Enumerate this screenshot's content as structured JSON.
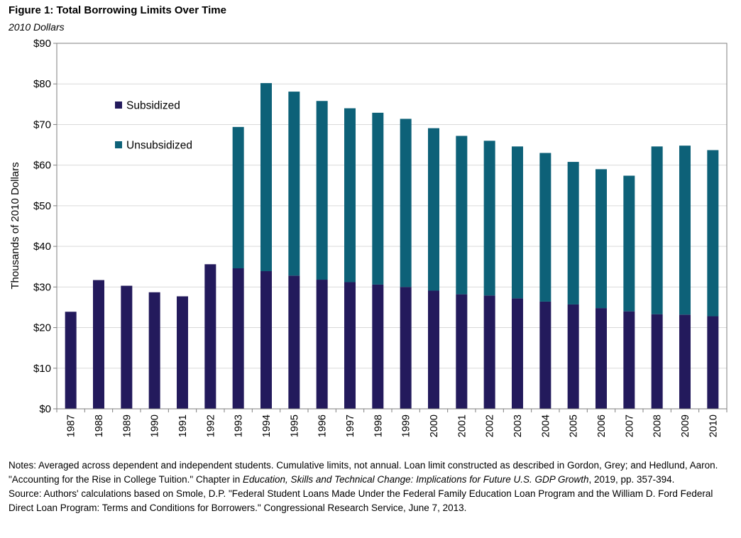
{
  "figure": {
    "title": "Figure 1: Total Borrowing Limits Over Time",
    "subtitle": "2010 Dollars"
  },
  "chart_data": {
    "type": "bar",
    "stacked": true,
    "categories": [
      "1987",
      "1988",
      "1989",
      "1990",
      "1991",
      "1992",
      "1993",
      "1994",
      "1995",
      "1996",
      "1997",
      "1998",
      "1999",
      "2000",
      "2001",
      "2002",
      "2003",
      "2004",
      "2005",
      "2006",
      "2007",
      "2008",
      "2009",
      "2010"
    ],
    "series": [
      {
        "name": "Subsidized",
        "color": "#231a5c",
        "values": [
          23.9,
          31.7,
          30.3,
          28.7,
          27.7,
          35.6,
          34.6,
          33.9,
          32.8,
          31.8,
          31.2,
          30.6,
          30.0,
          29.1,
          28.2,
          27.9,
          27.2,
          26.4,
          25.7,
          24.8,
          24.0,
          23.3,
          23.2,
          22.8
        ]
      },
      {
        "name": "Unsubsidized",
        "color": "#0d6178",
        "values": [
          0,
          0,
          0,
          0,
          0,
          0,
          34.8,
          46.3,
          45.3,
          44.0,
          42.8,
          42.3,
          41.4,
          40.0,
          39.0,
          38.1,
          37.4,
          36.6,
          35.1,
          34.2,
          33.4,
          41.3,
          41.6,
          40.9
        ]
      }
    ],
    "ylabel": "Thousands of 2010 Dollars",
    "xlabel": "",
    "ylim": [
      0,
      90
    ],
    "yticks": [
      0,
      10,
      20,
      30,
      40,
      50,
      60,
      70,
      80,
      90
    ],
    "ytick_labels": [
      "$0",
      "$10",
      "$20",
      "$30",
      "$40",
      "$50",
      "$60",
      "$70",
      "$80",
      "$90"
    ],
    "grid": true,
    "legend_position": "top-left inside"
  },
  "notes": {
    "notes_prefix": "Notes: Averaged across dependent and independent students. Cumulative limits, not annual. Loan limit constructed as described in Gordon, Grey; and Hedlund, Aaron. \"Accounting for the Rise in College Tuition.\" Chapter in ",
    "notes_book": "Education, Skills and Technical Change: Implications for Future U.S. GDP Growth",
    "notes_suffix": ", 2019, pp. 357-394.",
    "source": "Source: Authors' calculations based on Smole, D.P. \"Federal Student Loans Made Under the Federal Family Education Loan Program and the William D. Ford Federal Direct Loan Program: Terms and Conditions for Borrowers.\" Congressional Research Service, June 7, 2013."
  }
}
